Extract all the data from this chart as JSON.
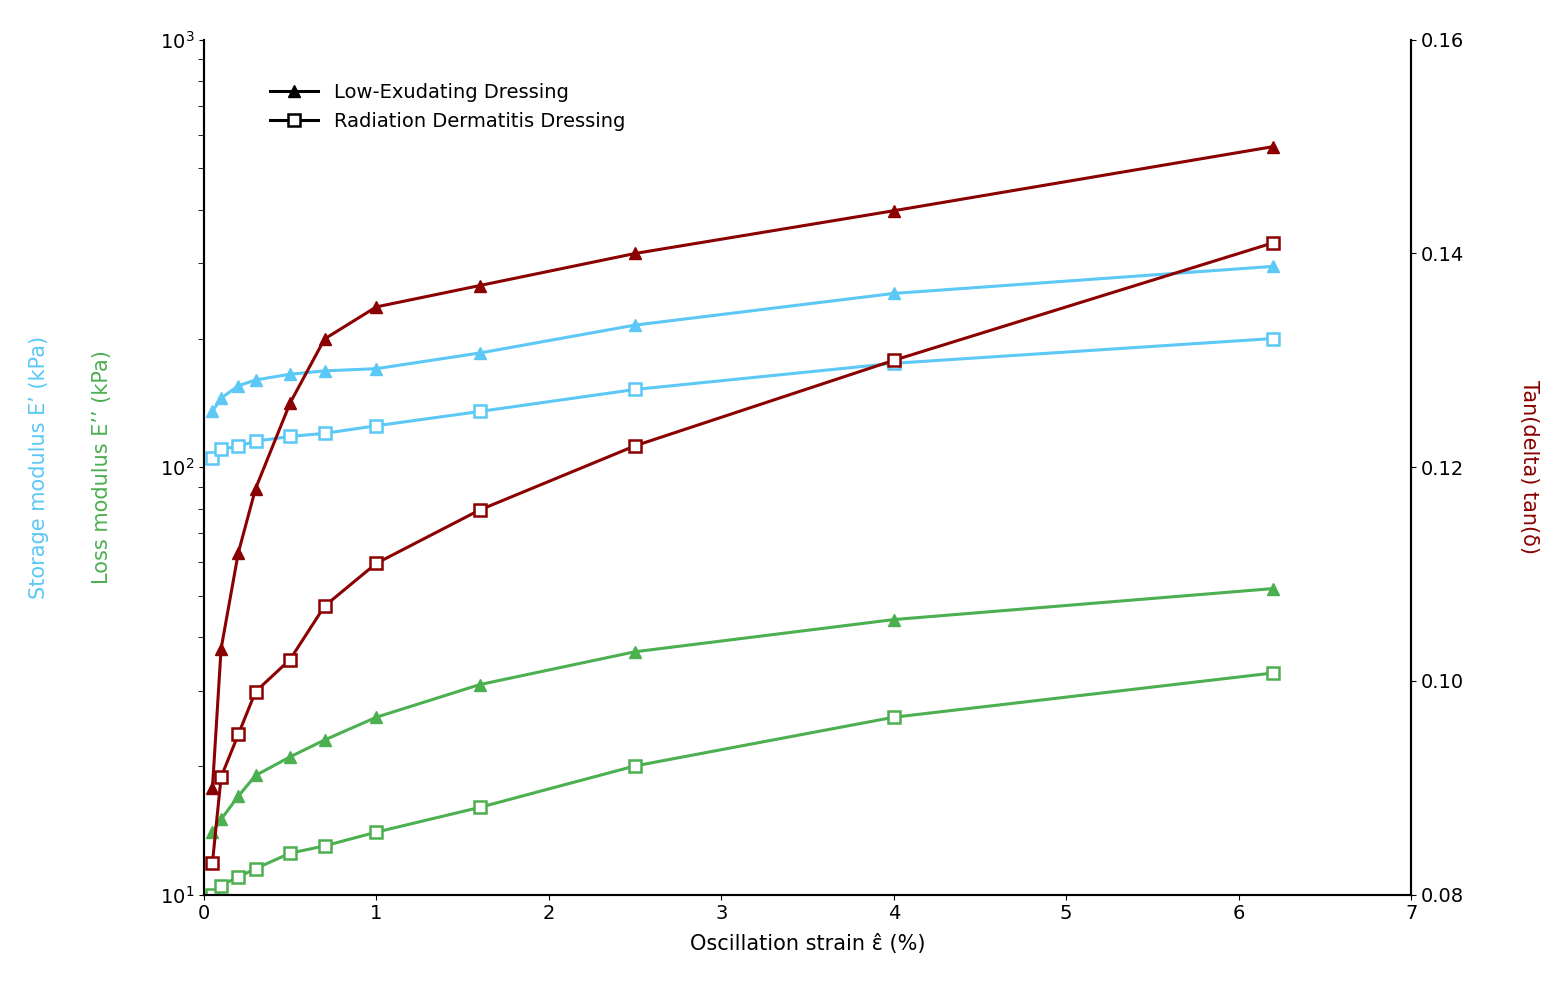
{
  "x_strain": [
    0.05,
    0.1,
    0.2,
    0.3,
    0.5,
    0.7,
    1.0,
    1.6,
    2.5,
    4.0,
    6.2
  ],
  "storage_low_exudate": [
    135,
    145,
    155,
    160,
    165,
    168,
    170,
    185,
    215,
    255,
    295
  ],
  "storage_radiation": [
    105,
    110,
    112,
    115,
    118,
    120,
    125,
    135,
    152,
    175,
    200
  ],
  "loss_low_exudate": [
    14,
    15,
    17,
    19,
    21,
    23,
    26,
    31,
    37,
    44,
    52
  ],
  "loss_radiation": [
    10,
    10.5,
    11,
    11.5,
    12.5,
    13,
    14,
    16,
    20,
    26,
    33
  ],
  "tandelta_low_exudate": [
    0.09,
    0.103,
    0.112,
    0.118,
    0.126,
    0.132,
    0.135,
    0.137,
    0.14,
    0.144,
    0.15
  ],
  "tandelta_radiation": [
    0.083,
    0.091,
    0.095,
    0.099,
    0.102,
    0.107,
    0.111,
    0.116,
    0.122,
    0.13,
    0.141
  ],
  "color_storage": "#5bc8f5",
  "color_loss": "#4caf50",
  "color_tandelta": "#8b0000",
  "color_axis_storage": "#5bc8f5",
  "color_axis_loss": "#4caf50",
  "color_axis_tandelta": "#8b0000",
  "xlabel": "Oscillation strain ε̂ (%)",
  "ylabel_storage": "Storage modulus E’ (kPa)",
  "ylabel_loss": "Loss modulus E’’ (kPa)",
  "ylabel_right": "Tan(delta) tan(δ)",
  "xlim": [
    0,
    7
  ],
  "ylim_left": [
    10,
    1000
  ],
  "ylim_right": [
    0.08,
    0.16
  ],
  "yticks_right": [
    0.08,
    0.1,
    0.12,
    0.14,
    0.16
  ],
  "legend_entries": [
    "Low-Exudating Dressing",
    "Radiation Dermatitis Dressing"
  ],
  "label_fontsize": 15,
  "tick_fontsize": 14,
  "legend_fontsize": 14,
  "linewidth": 2.2,
  "markersize": 9
}
